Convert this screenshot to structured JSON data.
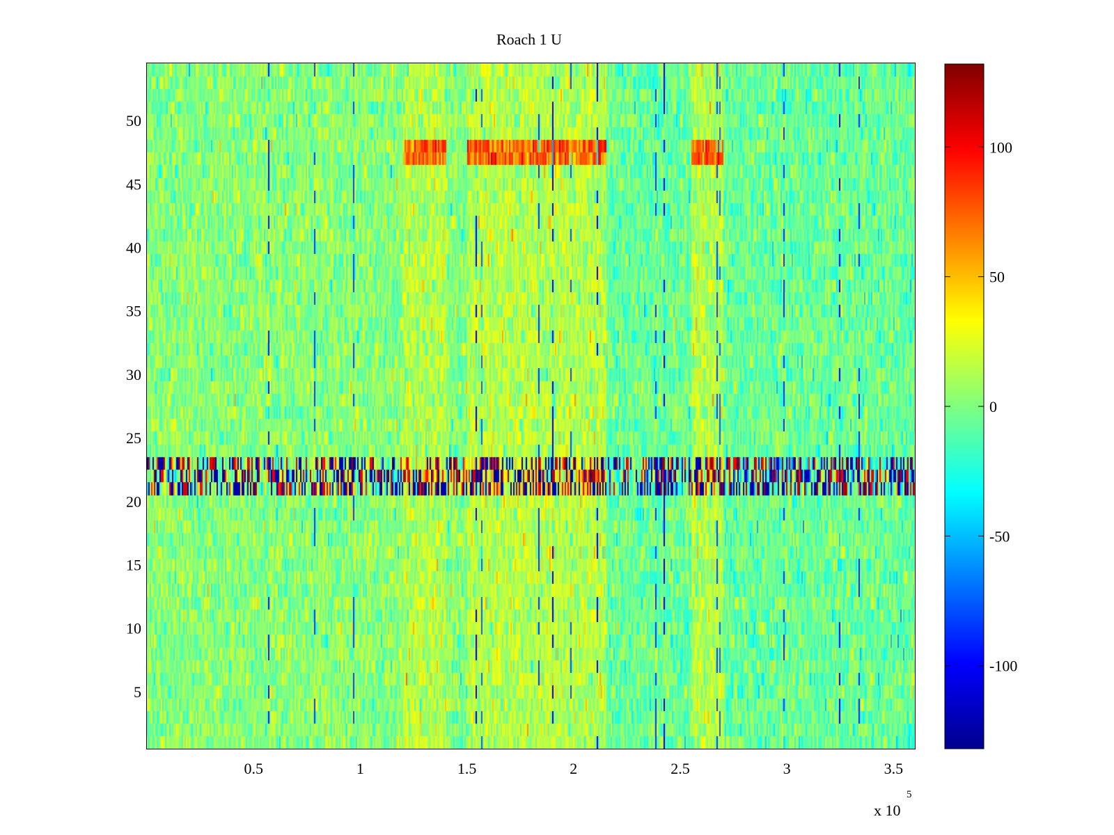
{
  "chart_data": {
    "type": "heatmap",
    "title": "Roach 1 U",
    "xlabel": "",
    "ylabel": "",
    "xlim": [
      0,
      360000
    ],
    "ylim": [
      0.5,
      54.5
    ],
    "x_ticks": [
      50000,
      100000,
      150000,
      200000,
      250000,
      300000,
      350000
    ],
    "x_tick_labels": [
      "0.5",
      "1",
      "1.5",
      "2",
      "2.5",
      "3",
      "3.5"
    ],
    "x_multiplier_label": "x 10",
    "x_multiplier_exponent": "5",
    "y_ticks": [
      5,
      10,
      15,
      20,
      25,
      30,
      35,
      40,
      45,
      50
    ],
    "y_tick_labels": [
      "5",
      "10",
      "15",
      "20",
      "25",
      "30",
      "35",
      "40",
      "45",
      "50"
    ],
    "rows": 54,
    "colormap": "jet",
    "clim": [
      -132,
      132
    ],
    "colorbar": {
      "ticks": [
        -100,
        -50,
        0,
        50,
        100
      ],
      "tick_labels": [
        "-100",
        "-50",
        "0",
        "50",
        "100"
      ],
      "placement": "right"
    },
    "features": {
      "background_mean": 0,
      "high_activity_x_ranges": [
        [
          120000,
          140000
        ],
        [
          150000,
          215000
        ],
        [
          255000,
          270000
        ]
      ],
      "high_activity_rows": [
        [
          47,
          48
        ]
      ],
      "strong_alternating_rows": [
        [
          21,
          23
        ]
      ],
      "grid": false
    }
  }
}
